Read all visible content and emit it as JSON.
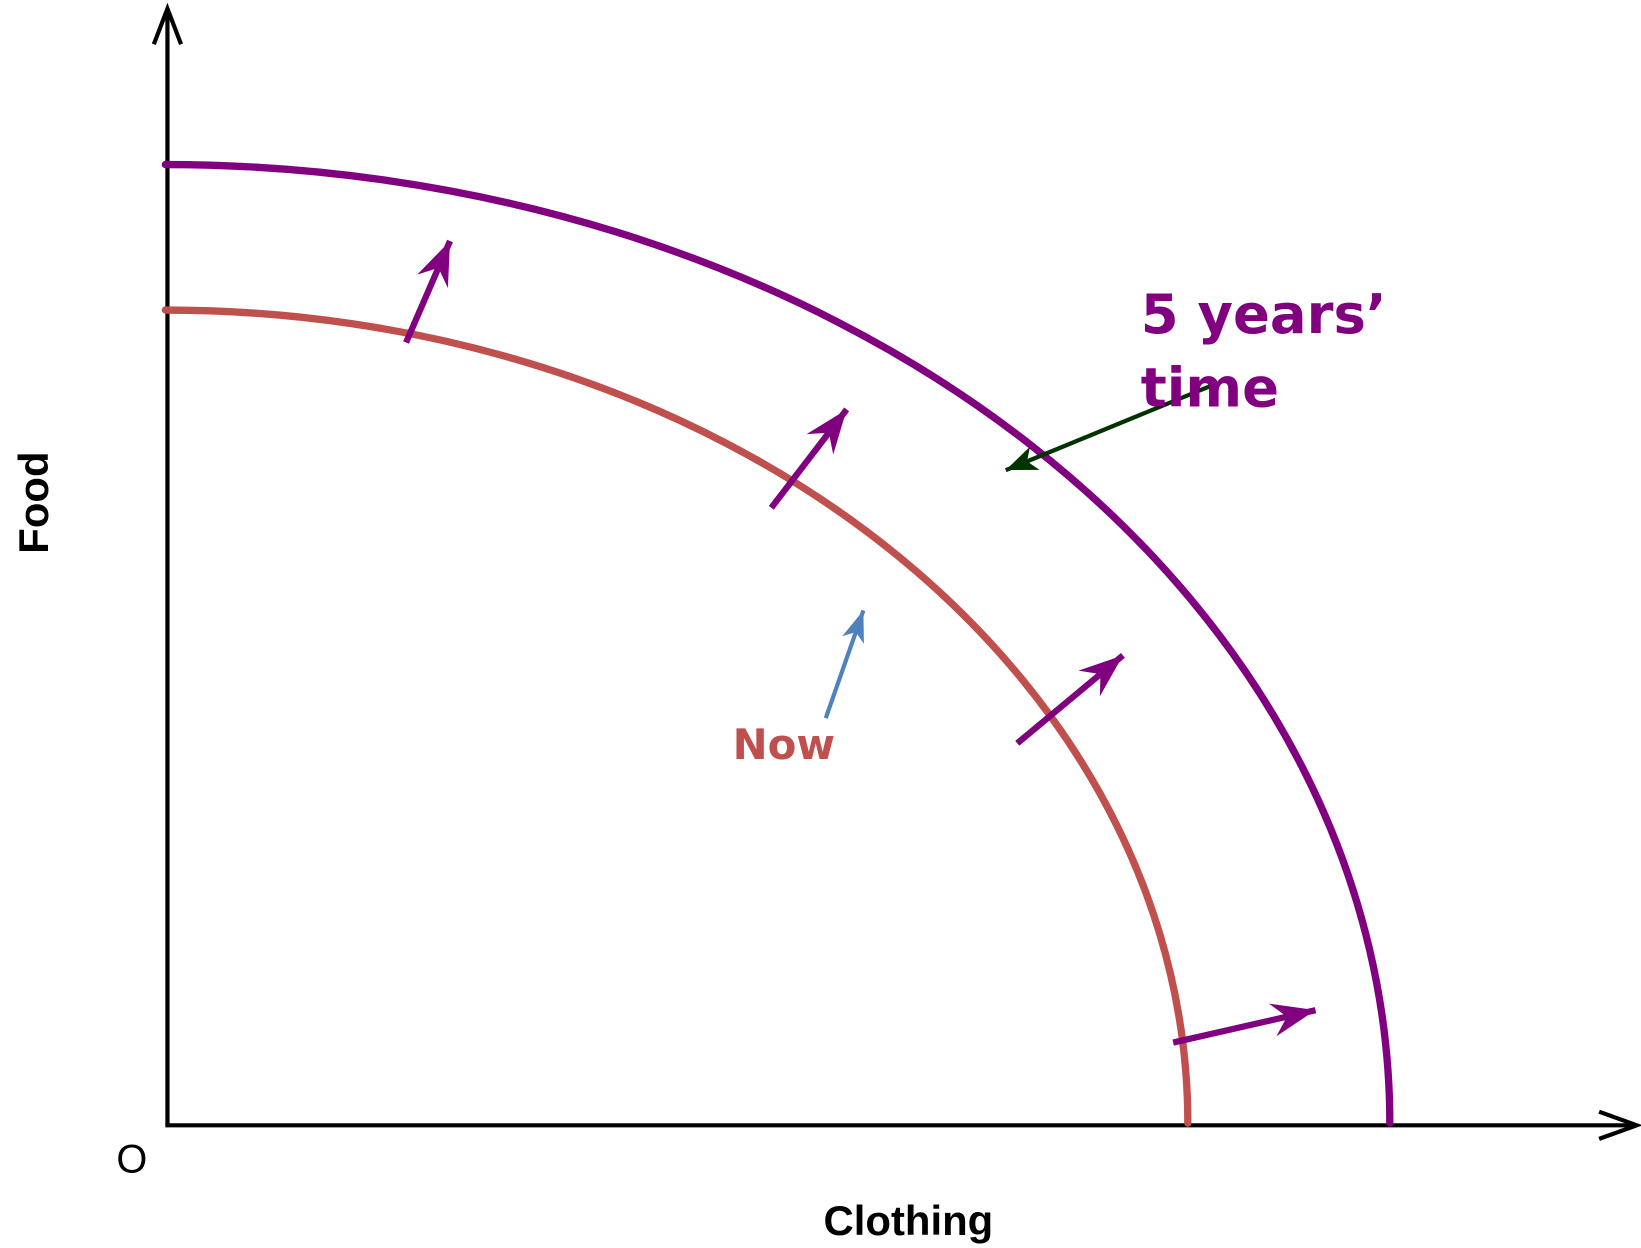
{
  "axes": {
    "x_label": "Clothing",
    "y_label": "Food",
    "origin": "O"
  },
  "curves": [
    {
      "label": "Now"
    },
    {
      "label_lines": [
        "5 years’",
        "time"
      ]
    }
  ]
}
